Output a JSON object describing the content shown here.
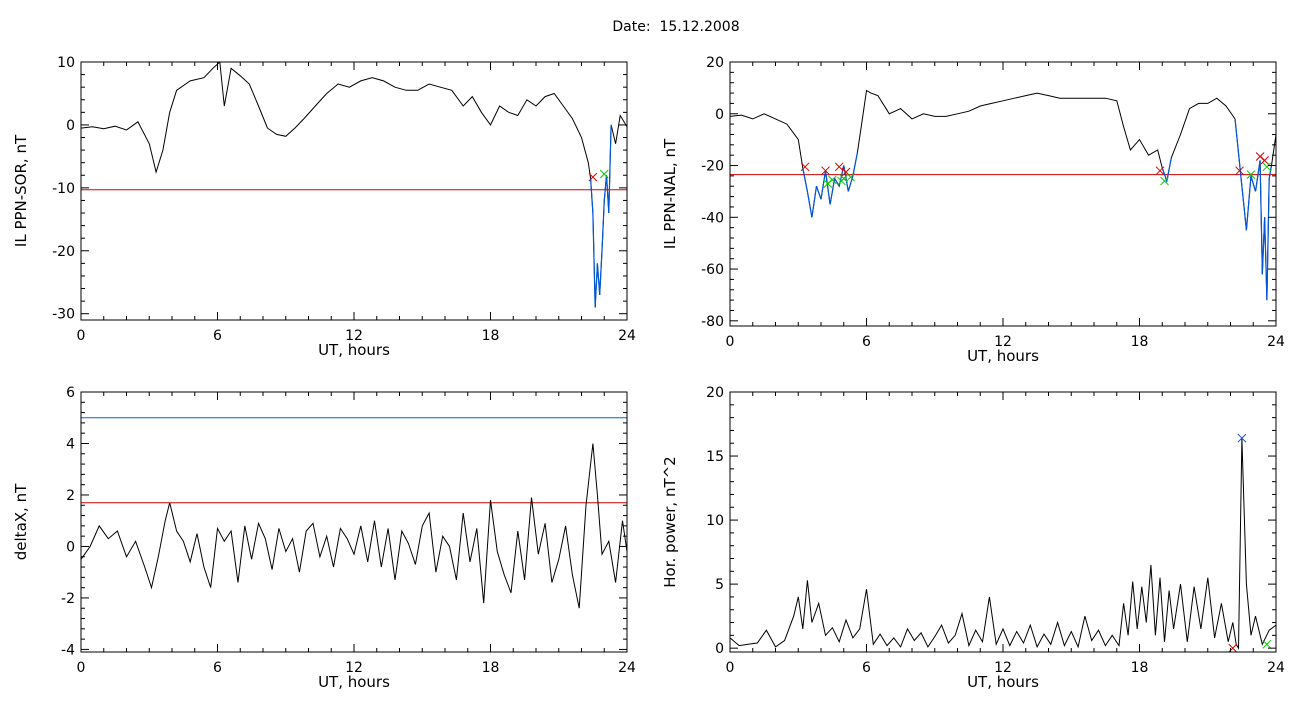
{
  "figure": {
    "date_label": "Date:  15.12.2008"
  },
  "colors": {
    "trace": "#000000",
    "threshold_red": "#d00000",
    "threshold_blue": "#0066cc",
    "below_threshold": "#0055dd",
    "marker_start": "#dd0000",
    "marker_end": "#00cc00",
    "peak_marker": "#2255cc"
  },
  "chart_data": [
    {
      "id": "ppn-sor",
      "type": "line",
      "xlabel": "UT, hours",
      "ylabel": "IL PPN-SOR, nT",
      "xlim": [
        0,
        24
      ],
      "ylim": [
        -31,
        10
      ],
      "xticks": [
        0,
        6,
        12,
        18,
        24
      ],
      "yticks": [
        -30,
        -20,
        -10,
        0,
        10
      ],
      "threshold": -10.3,
      "x": [
        0,
        0.5,
        1,
        1.5,
        2,
        2.5,
        3,
        3.3,
        3.6,
        3.9,
        4.2,
        4.8,
        5.4,
        5.8,
        6.1,
        6.3,
        6.6,
        7,
        7.4,
        7.8,
        8.2,
        8.6,
        9,
        9.4,
        9.8,
        10.3,
        10.8,
        11.3,
        11.8,
        12.3,
        12.8,
        13.3,
        13.8,
        14.3,
        14.8,
        15.3,
        15.8,
        16.3,
        16.8,
        17.2,
        17.6,
        18,
        18.4,
        18.8,
        19.2,
        19.6,
        20,
        20.4,
        20.8,
        21.2,
        21.6,
        22,
        22.3,
        22.4,
        22.5,
        22.6,
        22.7,
        22.8,
        22.9,
        23,
        23.1,
        23.2,
        23.3,
        23.5,
        23.7,
        24
      ],
      "y": [
        -0.5,
        -0.3,
        -0.6,
        -0.2,
        -0.8,
        0.5,
        -3,
        -7.5,
        -4,
        2,
        5.5,
        7,
        7.5,
        9,
        10,
        3,
        9,
        7.8,
        6.5,
        3,
        -0.5,
        -1.5,
        -1.8,
        -0.5,
        1,
        3,
        5,
        6.5,
        6,
        7,
        7.5,
        7,
        6,
        5.5,
        5.5,
        6.5,
        6,
        5.5,
        3,
        4.5,
        2,
        0,
        3,
        2,
        1.5,
        4,
        3,
        4.5,
        5,
        3,
        1,
        -2,
        -6,
        -8.5,
        -14,
        -29,
        -22,
        -27,
        -20,
        -12,
        -8,
        -14,
        0,
        -3,
        1.5,
        -0.3
      ]
    },
    {
      "id": "ppn-nal",
      "type": "line",
      "xlabel": "UT, hours",
      "ylabel": "IL PPN-NAL, nT",
      "xlim": [
        0,
        24
      ],
      "ylim": [
        -82,
        20
      ],
      "xticks": [
        0,
        6,
        12,
        18,
        24
      ],
      "yticks": [
        -80,
        -60,
        -40,
        -20,
        0,
        20
      ],
      "threshold": -23.5,
      "x": [
        0,
        0.5,
        1,
        1.5,
        2,
        2.5,
        3,
        3.2,
        3.4,
        3.6,
        3.8,
        4,
        4.2,
        4.4,
        4.6,
        4.8,
        5,
        5.2,
        5.4,
        5.6,
        5.8,
        6,
        6.2,
        6.5,
        7,
        7.5,
        8,
        8.5,
        9,
        9.5,
        10,
        10.5,
        11,
        11.5,
        12,
        12.5,
        13,
        13.5,
        14,
        14.5,
        15,
        15.5,
        16,
        16.5,
        17,
        17.3,
        17.6,
        18,
        18.4,
        18.8,
        19,
        19.2,
        19.4,
        19.8,
        20.2,
        20.6,
        21,
        21.4,
        21.8,
        22.2,
        22.5,
        22.7,
        22.9,
        23.1,
        23.3,
        23.4,
        23.5,
        23.6,
        23.7,
        23.8,
        24
      ],
      "y": [
        -1,
        -0.5,
        -2,
        0,
        -2,
        -4,
        -10,
        -21,
        -30,
        -40,
        -28,
        -33,
        -22,
        -35,
        -25,
        -28,
        -20,
        -30,
        -24,
        -15,
        -3,
        9,
        8,
        7,
        0,
        2,
        -2,
        0,
        -1,
        -1,
        0,
        1,
        3,
        4,
        5,
        6,
        7,
        8,
        7,
        6,
        6,
        6,
        6,
        6,
        5,
        -5,
        -14,
        -10,
        -16,
        -14,
        -21,
        -26,
        -17,
        -8,
        2,
        4,
        4,
        6,
        3,
        -2,
        -28,
        -45,
        -24,
        -30,
        -18,
        -62,
        -40,
        -72,
        -25,
        -20,
        -8
      ],
      "below_threshold_ranges": [
        [
          3.2,
          5.4
        ],
        [
          18.9,
          19.5
        ],
        [
          22.4,
          23.8
        ]
      ],
      "start_markers": [
        [
          3.3,
          -20.5
        ],
        [
          4.2,
          -22
        ],
        [
          4.8,
          -20.5
        ],
        [
          5.1,
          -22.5
        ],
        [
          18.9,
          -22
        ],
        [
          22.4,
          -22
        ],
        [
          23.3,
          -16.5
        ],
        [
          23.5,
          -18
        ]
      ],
      "end_markers": [
        [
          4.3,
          -27
        ],
        [
          4.5,
          -25.5
        ],
        [
          4.9,
          -26
        ],
        [
          5.0,
          -25
        ],
        [
          5.3,
          -24.5
        ],
        [
          19.1,
          -26
        ],
        [
          22.9,
          -23.5
        ],
        [
          23.6,
          -20.5
        ]
      ]
    },
    {
      "id": "deltax",
      "type": "line",
      "xlabel": "UT, hours",
      "ylabel": "deltaX, nT",
      "xlim": [
        0,
        24
      ],
      "ylim": [
        -4.1,
        6
      ],
      "xticks": [
        0,
        6,
        12,
        18,
        24
      ],
      "yticks": [
        -4,
        -2,
        0,
        2,
        4,
        6
      ],
      "thresholds": [
        1.7,
        5.0
      ],
      "x": [
        0,
        0.4,
        0.8,
        1.2,
        1.6,
        2,
        2.4,
        2.8,
        3.1,
        3.4,
        3.7,
        3.9,
        4.2,
        4.5,
        4.8,
        5.1,
        5.4,
        5.7,
        6,
        6.3,
        6.6,
        6.9,
        7.2,
        7.5,
        7.8,
        8.1,
        8.4,
        8.7,
        9,
        9.3,
        9.6,
        9.9,
        10.2,
        10.5,
        10.8,
        11.1,
        11.4,
        11.7,
        12,
        12.3,
        12.6,
        12.9,
        13.2,
        13.5,
        13.8,
        14.1,
        14.4,
        14.7,
        15,
        15.3,
        15.6,
        15.9,
        16.2,
        16.5,
        16.8,
        17.1,
        17.4,
        17.7,
        18,
        18.3,
        18.6,
        18.9,
        19.2,
        19.5,
        19.8,
        20.1,
        20.4,
        20.7,
        21,
        21.3,
        21.6,
        21.9,
        22.2,
        22.5,
        22.7,
        22.9,
        23.2,
        23.5,
        23.8,
        24
      ],
      "y": [
        -0.5,
        0,
        0.8,
        0.3,
        0.6,
        -0.4,
        0.2,
        -0.8,
        -1.6,
        -0.4,
        1.0,
        1.7,
        0.6,
        0.2,
        -0.6,
        0.5,
        -0.8,
        -1.6,
        0.7,
        0.2,
        0.6,
        -1.4,
        0.8,
        -0.5,
        0.9,
        0.3,
        -0.9,
        0.7,
        -0.2,
        0.3,
        -1.0,
        0.6,
        0.9,
        -0.4,
        0.4,
        -0.8,
        0.7,
        0.3,
        -0.3,
        0.8,
        -0.6,
        1.0,
        -0.8,
        0.7,
        -1.3,
        0.6,
        0.1,
        -0.7,
        0.8,
        1.3,
        -1.0,
        0.4,
        0.0,
        -1.3,
        1.3,
        -0.6,
        0.7,
        -2.2,
        1.8,
        -0.2,
        -1.1,
        -1.8,
        0.6,
        -1.3,
        1.9,
        -0.3,
        0.9,
        -1.4,
        -0.5,
        0.8,
        -1.1,
        -2.4,
        1.6,
        4.0,
        2.0,
        -0.3,
        0.2,
        -1.4,
        1.0,
        -0.2
      ]
    },
    {
      "id": "hor-power",
      "type": "line",
      "xlabel": "UT, hours",
      "ylabel": "Hor. power, nT^2",
      "xlim": [
        0,
        24
      ],
      "ylim": [
        -0.3,
        20
      ],
      "xticks": [
        0,
        6,
        12,
        18,
        24
      ],
      "yticks": [
        0,
        5,
        10,
        15,
        20
      ],
      "x": [
        0,
        0.4,
        0.8,
        1.2,
        1.6,
        2,
        2.4,
        2.8,
        3,
        3.2,
        3.4,
        3.6,
        3.9,
        4.2,
        4.5,
        4.8,
        5.1,
        5.4,
        5.7,
        6,
        6.3,
        6.6,
        6.9,
        7.2,
        7.5,
        7.8,
        8.1,
        8.4,
        8.7,
        9,
        9.3,
        9.6,
        9.9,
        10.2,
        10.5,
        10.8,
        11.1,
        11.4,
        11.7,
        12,
        12.3,
        12.6,
        12.9,
        13.2,
        13.5,
        13.8,
        14.1,
        14.4,
        14.7,
        15,
        15.3,
        15.6,
        15.9,
        16.2,
        16.5,
        16.8,
        17.1,
        17.3,
        17.5,
        17.7,
        17.9,
        18.1,
        18.3,
        18.5,
        18.7,
        18.9,
        19.1,
        19.3,
        19.5,
        19.8,
        20.1,
        20.4,
        20.7,
        21,
        21.3,
        21.6,
        21.9,
        22.1,
        22.25,
        22.35,
        22.5,
        22.7,
        22.9,
        23.1,
        23.4,
        23.7,
        24
      ],
      "y": [
        0.8,
        0.2,
        0.3,
        0.4,
        1.4,
        0.1,
        0.6,
        2.5,
        4.0,
        1.5,
        5.3,
        2.0,
        3.5,
        1.0,
        1.6,
        0.5,
        2.2,
        0.8,
        1.5,
        4.6,
        0.3,
        1.1,
        0.2,
        0.8,
        0.1,
        1.5,
        0.6,
        1.2,
        0.1,
        0.9,
        1.8,
        0.4,
        1.0,
        2.7,
        0.2,
        1.4,
        0.5,
        4.0,
        0.3,
        1.5,
        0.2,
        1.3,
        0.4,
        1.8,
        0.1,
        1.1,
        0.3,
        2.0,
        0.2,
        1.3,
        0.1,
        2.5,
        0.6,
        1.4,
        0.2,
        1.0,
        0.2,
        3.5,
        1.0,
        5.2,
        1.5,
        4.8,
        2.0,
        6.5,
        1.0,
        5.5,
        0.5,
        4.5,
        1.5,
        5.0,
        0.5,
        4.8,
        1.5,
        5.5,
        0.8,
        3.5,
        0.5,
        2.0,
        0.3,
        0.0,
        16.4,
        5.0,
        1.0,
        2.5,
        0.3,
        1.4,
        1.8
      ],
      "peak_marker": [
        22.5,
        16.4
      ],
      "base_markers": [
        [
          22.1,
          0.0
        ],
        [
          23.6,
          0.3
        ]
      ]
    }
  ]
}
